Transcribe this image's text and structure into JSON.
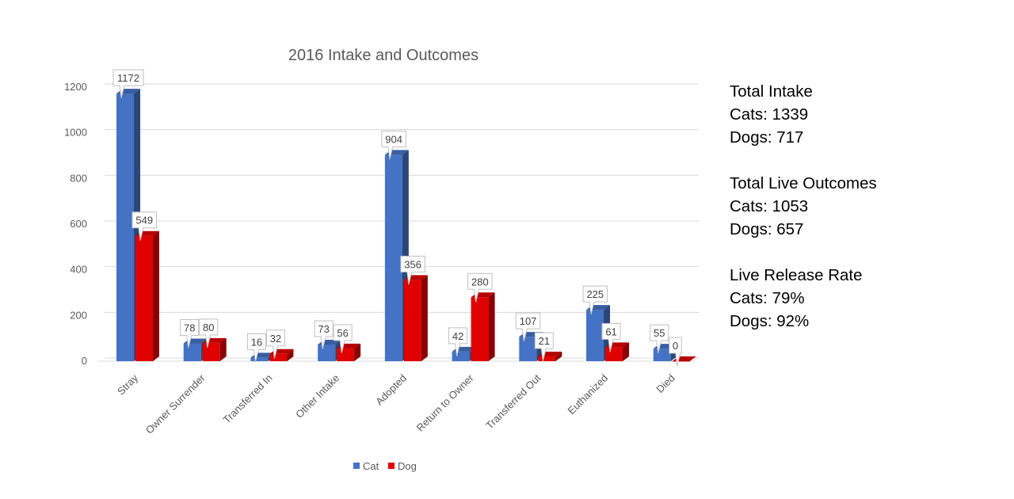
{
  "chart_data": {
    "type": "bar",
    "title": "2016 Intake and Outcomes",
    "categories": [
      "Stray",
      "Owner Surrender",
      "Transferred In",
      "Other Intake",
      "Adopted",
      "Return to Owner",
      "Transferred Out",
      "Euthanized",
      "Died"
    ],
    "series": [
      {
        "name": "Cat",
        "values": [
          1172,
          78,
          16,
          73,
          904,
          42,
          107,
          225,
          55
        ],
        "color": "#4472C4"
      },
      {
        "name": "Dog",
        "values": [
          549,
          80,
          32,
          56,
          356,
          280,
          21,
          61,
          0
        ],
        "color": "#E00000"
      }
    ],
    "ylim": [
      0,
      1200
    ],
    "y_ticks": [
      0,
      200,
      400,
      600,
      800,
      1000,
      1200
    ],
    "grid": true,
    "legend_position": "bottom",
    "style": "3d-clustered-column"
  },
  "stats": [
    {
      "heading": "Total Intake",
      "lines": [
        "Cats: 1339",
        "Dogs: 717"
      ]
    },
    {
      "heading": "Total Live Outcomes",
      "lines": [
        "Cats: 1053",
        "Dogs: 657"
      ]
    },
    {
      "heading": "Live Release Rate",
      "lines": [
        "Cats: 79%",
        "Dogs: 92%"
      ]
    }
  ]
}
